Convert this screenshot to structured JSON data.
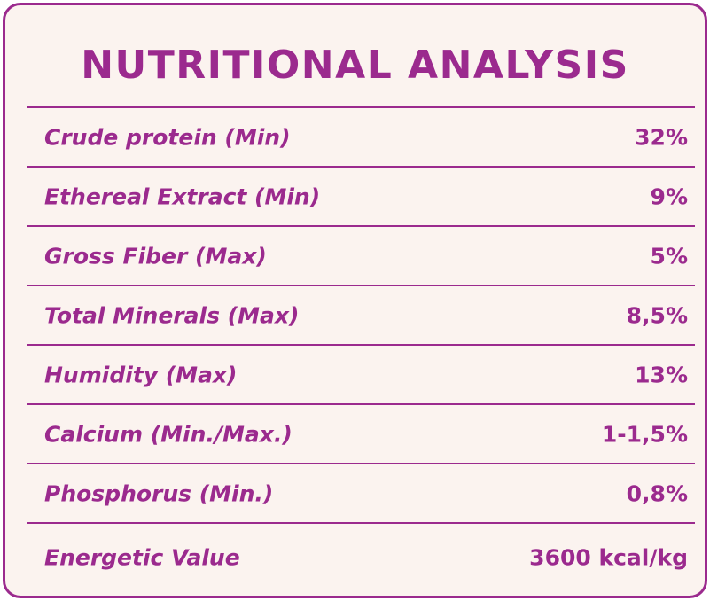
{
  "title": "NUTRITIONAL ANALYSIS",
  "accent_color": "#9b2a8e",
  "background_color": "#fbf3ef",
  "rows": [
    {
      "label": "Crude protein (Min)",
      "value": "32%"
    },
    {
      "label": "Ethereal Extract (Min)",
      "value": "9%"
    },
    {
      "label": "Gross Fiber (Max)",
      "value": "5%"
    },
    {
      "label": "Total Minerals (Max)",
      "value": "8,5%"
    },
    {
      "label": "Humidity (Max)",
      "value": "13%"
    },
    {
      "label": "Calcium (Min./Max.)",
      "value": "1-1,5%"
    },
    {
      "label": "Phosphorus (Min.)",
      "value": "0,8%"
    },
    {
      "label": "Energetic Value",
      "value": "3600 kcal/kg"
    }
  ]
}
